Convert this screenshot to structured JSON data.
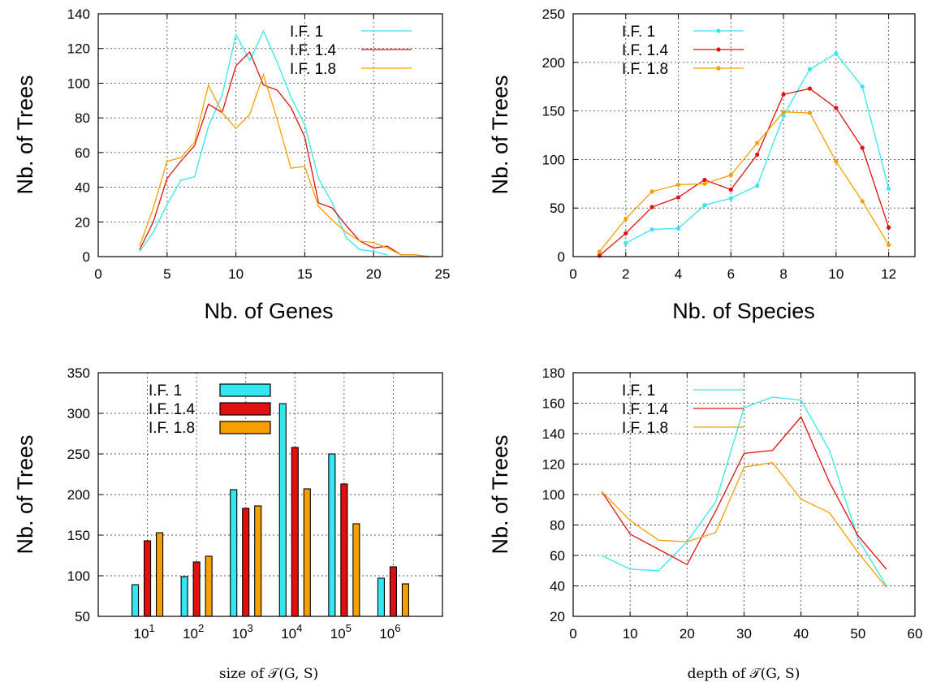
{
  "colors": {
    "if1": "#33e6f0",
    "if14": "#e01010",
    "if18": "#f5a000"
  },
  "chart_data": [
    {
      "type": "line",
      "xlabel": "Nb. of Genes",
      "ylabel": "Nb. of Trees",
      "xlim": [
        0,
        25
      ],
      "ylim": [
        0,
        140
      ],
      "xticks": [
        0,
        5,
        10,
        15,
        20,
        25
      ],
      "yticks": [
        0,
        20,
        40,
        60,
        80,
        100,
        120,
        140
      ],
      "grid": true,
      "legend": "top-right",
      "markers": false,
      "series": [
        {
          "name": "I.F. 1",
          "color": "#33e6f0",
          "x": [
            3,
            4,
            5,
            6,
            7,
            8,
            9,
            10,
            11,
            12,
            13,
            14,
            15,
            16,
            17,
            18,
            19,
            20,
            21
          ],
          "y": [
            3,
            14,
            30,
            44,
            46,
            75,
            93,
            128,
            113,
            130,
            112,
            92,
            76,
            45,
            31,
            11,
            4,
            3,
            1
          ]
        },
        {
          "name": "I.F. 1.4",
          "color": "#e01010",
          "x": [
            3,
            4,
            5,
            6,
            7,
            8,
            9,
            10,
            11,
            12,
            13,
            14,
            15,
            16,
            17,
            18,
            19,
            20,
            21,
            22,
            23,
            24
          ],
          "y": [
            4,
            20,
            45,
            55,
            64,
            88,
            83,
            110,
            118,
            99,
            96,
            86,
            69,
            31,
            28,
            18,
            9,
            5,
            6,
            1,
            1,
            0
          ]
        },
        {
          "name": "I.F. 1.8",
          "color": "#f5a000",
          "x": [
            3,
            4,
            5,
            6,
            7,
            8,
            9,
            10,
            11,
            12,
            13,
            14,
            15,
            16,
            17,
            18,
            19,
            20,
            21,
            22,
            23,
            24
          ],
          "y": [
            6,
            28,
            55,
            57,
            66,
            99,
            83,
            74,
            82,
            105,
            79,
            51,
            52,
            29,
            21,
            14,
            9,
            8,
            5,
            1,
            1,
            0
          ]
        }
      ]
    },
    {
      "type": "line",
      "xlabel": "Nb. of Species",
      "ylabel": "Nb. of Trees",
      "xlim": [
        0,
        13
      ],
      "ylim": [
        0,
        250
      ],
      "xticks": [
        0,
        2,
        4,
        6,
        8,
        10,
        12
      ],
      "yticks": [
        0,
        50,
        100,
        150,
        200,
        250
      ],
      "grid": true,
      "legend": "top-left",
      "markers": true,
      "series": [
        {
          "name": "I.F. 1",
          "color": "#33e6f0",
          "x": [
            2,
            3,
            4,
            5,
            6,
            7,
            8,
            9,
            10,
            11,
            12
          ],
          "y": [
            14,
            28,
            29,
            53,
            60,
            73,
            145,
            193,
            209,
            175,
            70
          ]
        },
        {
          "name": "I.F. 1.4",
          "color": "#e01010",
          "x": [
            1,
            2,
            3,
            4,
            5,
            6,
            7,
            8,
            9,
            10,
            11,
            12
          ],
          "y": [
            1,
            24,
            51,
            61,
            79,
            69,
            105,
            167,
            173,
            153,
            112,
            30
          ]
        },
        {
          "name": "I.F. 1.8",
          "color": "#f5a000",
          "x": [
            1,
            2,
            3,
            4,
            5,
            6,
            7,
            8,
            9,
            10,
            11,
            12
          ],
          "y": [
            5,
            39,
            67,
            74,
            75,
            84,
            117,
            149,
            148,
            98,
            57,
            12
          ]
        }
      ]
    },
    {
      "type": "bar",
      "xlabel": "size of 𝒯(G, S)",
      "ylabel": "Nb. of Trees",
      "ylim": [
        50,
        350
      ],
      "yticks": [
        50,
        100,
        150,
        200,
        250,
        300,
        350
      ],
      "categories": [
        "10",
        "10",
        "10",
        "10",
        "10",
        "10"
      ],
      "category_exponents": [
        "1",
        "2",
        "3",
        "4",
        "5",
        "6"
      ],
      "grid": true,
      "legend": "top-left",
      "series": [
        {
          "name": "I.F. 1",
          "color": "#33e6f0",
          "values": [
            89,
            99,
            206,
            312,
            250,
            97
          ]
        },
        {
          "name": "I.F. 1.4",
          "color": "#e01010",
          "values": [
            143,
            117,
            183,
            258,
            213,
            111
          ]
        },
        {
          "name": "I.F. 1.8",
          "color": "#f5a000",
          "values": [
            153,
            124,
            186,
            207,
            164,
            90
          ]
        }
      ]
    },
    {
      "type": "line",
      "xlabel": "depth of 𝒯(G, S)",
      "ylabel": "Nb. of Trees",
      "xlim": [
        0,
        60
      ],
      "ylim": [
        20,
        180
      ],
      "xticks": [
        0,
        10,
        20,
        30,
        40,
        50,
        60
      ],
      "yticks": [
        20,
        40,
        60,
        80,
        100,
        120,
        140,
        160,
        180
      ],
      "grid": true,
      "legend": "top-left",
      "markers": false,
      "series": [
        {
          "name": "I.F. 1",
          "color": "#33e6f0",
          "x": [
            5,
            10,
            15,
            20,
            25,
            30,
            35,
            40,
            45,
            50,
            55
          ],
          "y": [
            60,
            51,
            50,
            69,
            95,
            157,
            164,
            162,
            129,
            71,
            40
          ]
        },
        {
          "name": "I.F. 1.4",
          "color": "#e01010",
          "x": [
            5,
            10,
            15,
            20,
            25,
            30,
            35,
            40,
            45,
            50,
            55
          ],
          "y": [
            102,
            74,
            64,
            54,
            89,
            127,
            129,
            151,
            108,
            73,
            51
          ]
        },
        {
          "name": "I.F. 1.8",
          "color": "#f5a000",
          "x": [
            5,
            10,
            15,
            20,
            25,
            30,
            35,
            40,
            45,
            50,
            55
          ],
          "y": [
            102,
            83,
            70,
            69,
            75,
            118,
            121,
            97,
            88,
            62,
            39
          ]
        }
      ]
    }
  ]
}
